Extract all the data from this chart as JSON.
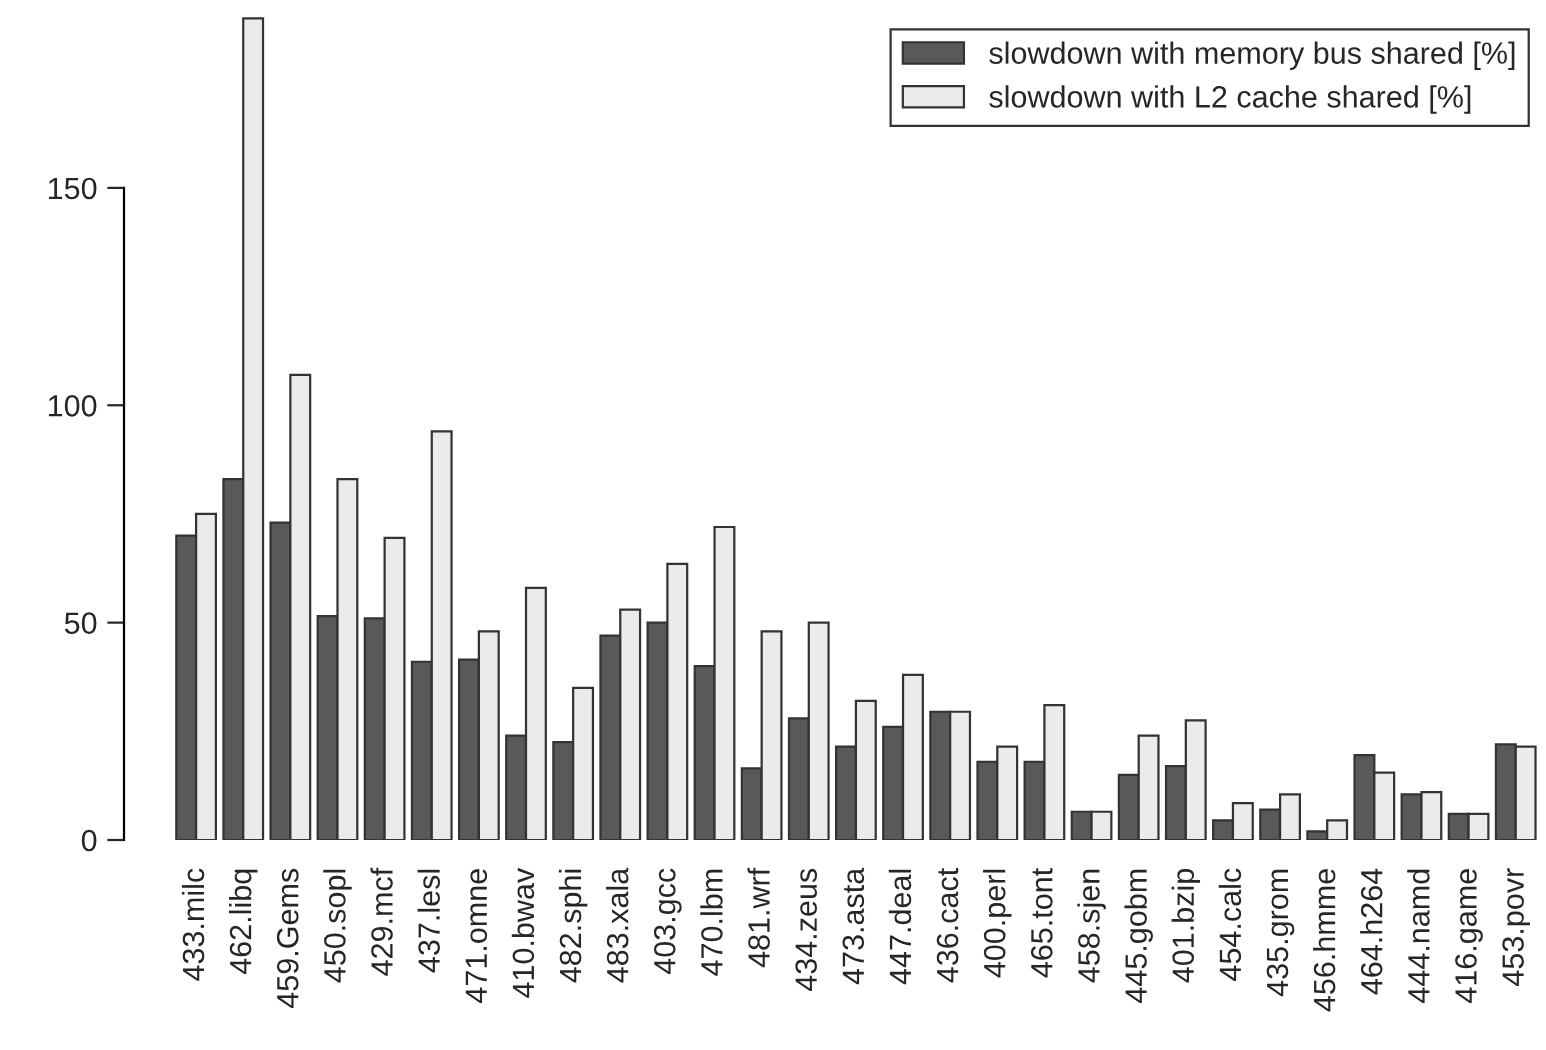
{
  "chart_data": {
    "type": "bar",
    "categories": [
      "433.milc",
      "462.libq",
      "459.Gems",
      "450.sopl",
      "429.mcf",
      "437.lesl",
      "471.omne",
      "410.bwav",
      "482.sphi",
      "483.xala",
      "403.gcc",
      "470.lbm",
      "481.wrf",
      "434.zeus",
      "473.asta",
      "447.deal",
      "436.cact",
      "400.perl",
      "465.tont",
      "458.sjen",
      "445.gobm",
      "401.bzip",
      "454.calc",
      "435.grom",
      "456.hmme",
      "464.h264",
      "444.namd",
      "416.game",
      "453.povr"
    ],
    "series": [
      {
        "name": "slowdown with memory bus shared [%]",
        "color": "#595959",
        "values": [
          70,
          83,
          73,
          51.5,
          51,
          41,
          41.5,
          24,
          22.5,
          47,
          50,
          40,
          16.5,
          28,
          21.5,
          26,
          29.5,
          18,
          18,
          6.5,
          15,
          17,
          4.5,
          7,
          2,
          19.5,
          10.5,
          6,
          22
        ]
      },
      {
        "name": "slowdown with L2 cache shared [%]",
        "color": "#ebebeb",
        "values": [
          75,
          189,
          107,
          83,
          69.5,
          94,
          48,
          58,
          35,
          53,
          63.5,
          72,
          48,
          50,
          32,
          38,
          29.5,
          21.5,
          31,
          6.5,
          24,
          27.5,
          8.5,
          10.5,
          4.5,
          15.5,
          11,
          6,
          21.5
        ]
      }
    ],
    "ylim": [
      0,
      190
    ],
    "yticks": [
      0,
      50,
      100,
      150
    ],
    "grid": false,
    "legend": "top right"
  }
}
